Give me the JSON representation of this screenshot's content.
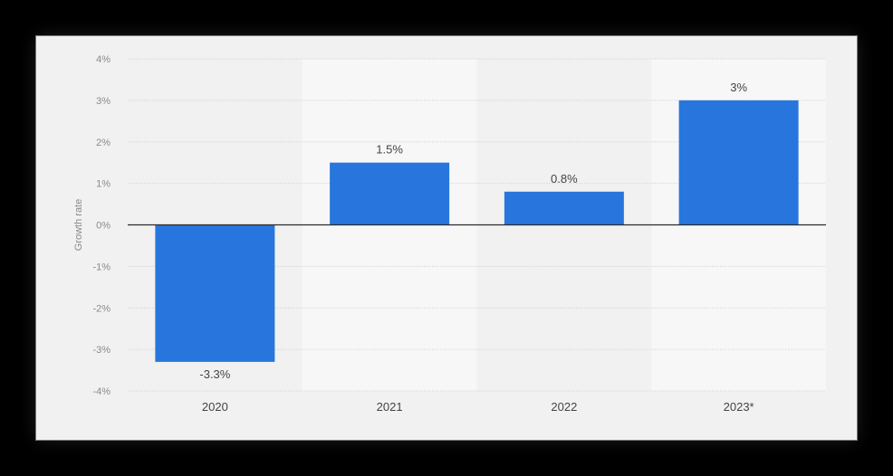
{
  "chart_data": {
    "type": "bar",
    "categories": [
      "2020",
      "2021",
      "2022",
      "2023*"
    ],
    "values": [
      -3.3,
      1.5,
      0.8,
      3
    ],
    "data_labels": [
      "-3.3%",
      "1.5%",
      "0.8%",
      "3%"
    ],
    "ylabel": "Growth rate",
    "ylim": [
      -4,
      4
    ],
    "yticks": [
      4,
      3,
      2,
      1,
      0,
      -1,
      -2,
      -3,
      -4
    ],
    "ytick_labels": [
      "4%",
      "3%",
      "2%",
      "1%",
      "0%",
      "-1%",
      "-2%",
      "-3%",
      "-4%"
    ],
    "grid": true,
    "legend": "none",
    "colors": {
      "bar": "#2876dd",
      "band_light": "#f7f7f7",
      "band_dark": "#f1f1f1",
      "grid": "#d6d6d6",
      "zero_line": "#2b2b2b"
    }
  }
}
